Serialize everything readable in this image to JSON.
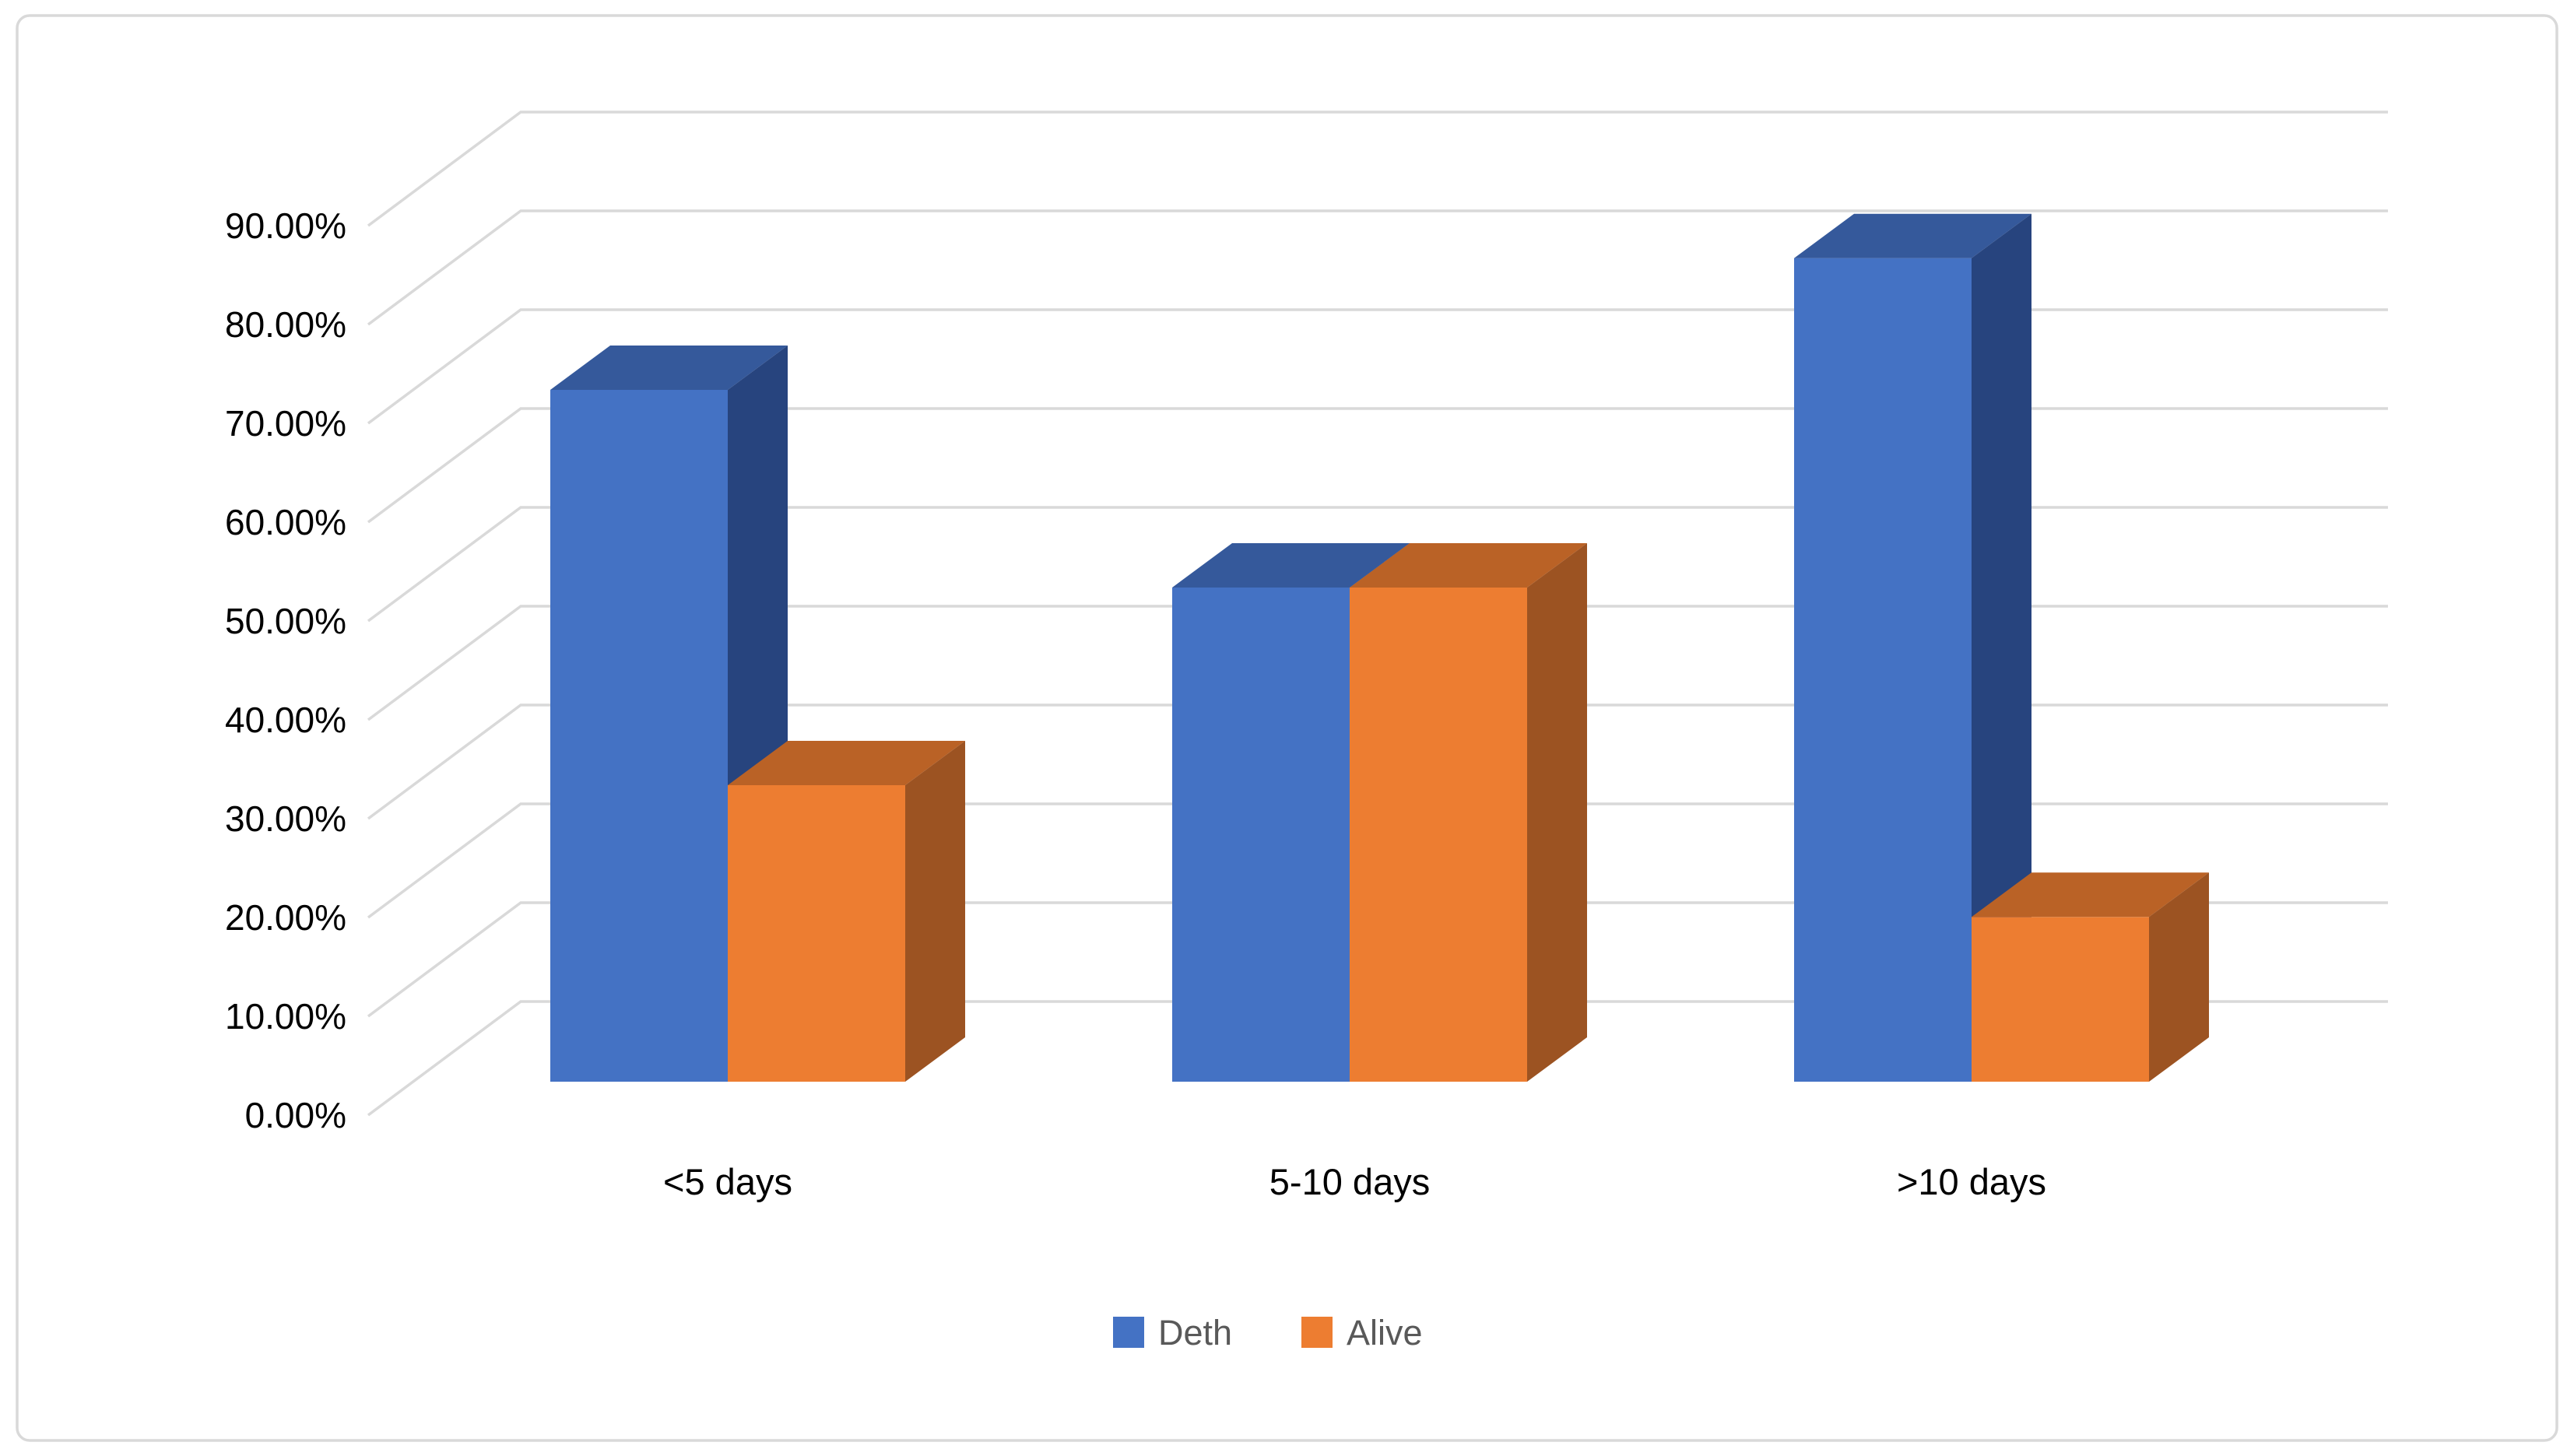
{
  "chart_data": {
    "type": "bar",
    "projection": "3d-clustered-column",
    "title": "",
    "categories": [
      "<5 days",
      "5-10 days",
      ">10 days"
    ],
    "series": [
      {
        "name": "Deth",
        "values": [
          70.0,
          50.0,
          83.33
        ],
        "color_front": "#4472C4",
        "color_top": "#35599B",
        "color_side": "#27447E"
      },
      {
        "name": "Alive",
        "values": [
          30.0,
          50.0,
          16.67
        ],
        "color_front": "#ED7D31",
        "color_top": "#BA6226",
        "color_side": "#9C5322"
      }
    ],
    "value_axis": {
      "min": 0,
      "max": 90,
      "step": 10,
      "tick_labels": [
        "0.00%",
        "10.00%",
        "20.00%",
        "30.00%",
        "40.00%",
        "50.00%",
        "60.00%",
        "70.00%",
        "80.00%",
        "90.00%"
      ]
    },
    "xlabel": "",
    "ylabel": "",
    "grid": true,
    "legend": {
      "position": "bottom",
      "entries": [
        "Deth",
        "Alive"
      ]
    },
    "colors": {
      "background": "#FFFFFF",
      "chart_border": "#D9D9D9",
      "gridline": "#D9D9D9",
      "axis_text": "#000000",
      "legend_text": "#595959"
    }
  }
}
